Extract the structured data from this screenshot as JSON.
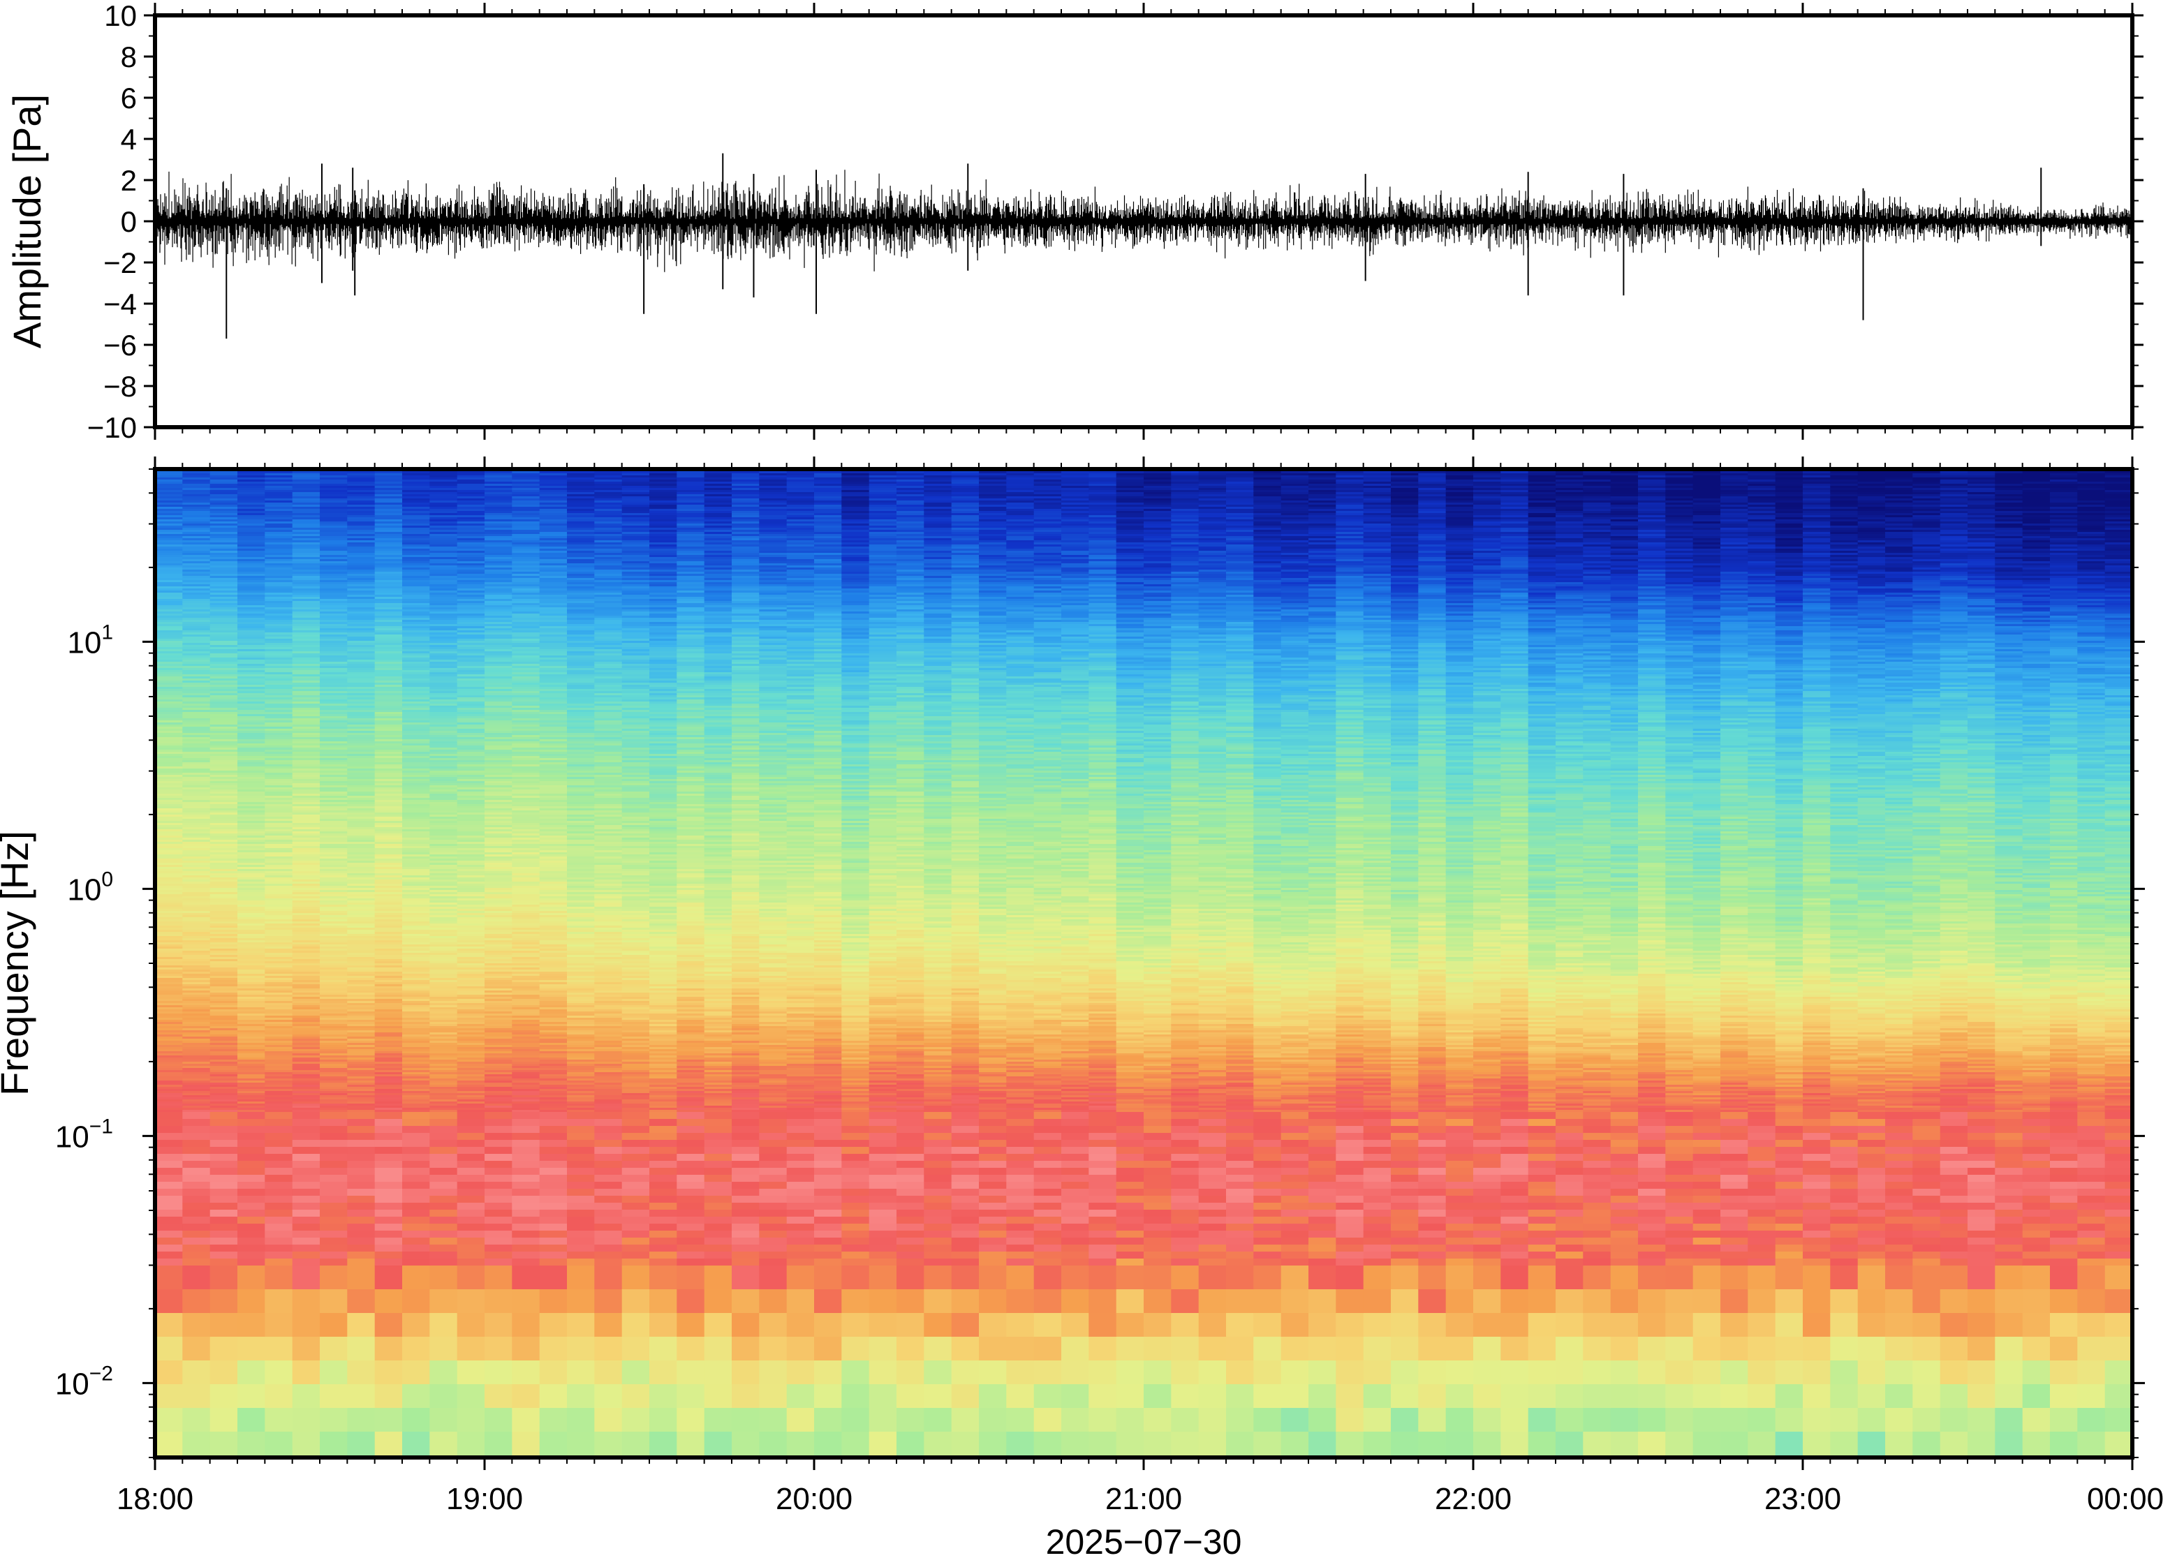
{
  "chart_data": [
    {
      "type": "line",
      "panel": "waveform",
      "ylabel": "Amplitude [Pa]",
      "ylim": [
        -10,
        10
      ],
      "yticks": [
        "10",
        "8",
        "6",
        "4",
        "2",
        "0",
        "−2",
        "−4",
        "−6",
        "−8",
        "−10"
      ],
      "xlim": [
        "18:00",
        "00:00"
      ],
      "x_spikes": [
        {
          "time": "18:13",
          "min": -5.7,
          "max": 1.6
        },
        {
          "time": "18:30",
          "min": -3.0,
          "max": 2.8
        },
        {
          "time": "18:36",
          "min": -2.4,
          "max": 2.6
        },
        {
          "time": "18:36",
          "min": -3.6,
          "max": 1.5
        },
        {
          "time": "19:29",
          "min": -4.5,
          "max": 1.8
        },
        {
          "time": "19:43",
          "min": -3.3,
          "max": 3.3
        },
        {
          "time": "19:49",
          "min": -3.7,
          "max": 2.3
        },
        {
          "time": "20:00",
          "min": -4.5,
          "max": 2.5
        },
        {
          "time": "20:28",
          "min": -2.4,
          "max": 2.8
        },
        {
          "time": "21:40",
          "min": -2.9,
          "max": 2.3
        },
        {
          "time": "22:10",
          "min": -3.6,
          "max": 2.4
        },
        {
          "time": "22:27",
          "min": -3.6,
          "max": 2.3
        },
        {
          "time": "23:11",
          "min": -4.8,
          "max": 1.6
        },
        {
          "time": "23:43",
          "min": -1.2,
          "max": 2.6
        }
      ],
      "amplitude_envelope": [
        {
          "time": "18:00",
          "max": 1.6,
          "min": -1.6
        },
        {
          "time": "19:00",
          "max": 1.3,
          "min": -1.3
        },
        {
          "time": "20:00",
          "max": 1.6,
          "min": -1.6
        },
        {
          "time": "21:00",
          "max": 1.0,
          "min": -1.0
        },
        {
          "time": "22:00",
          "max": 1.1,
          "min": -1.1
        },
        {
          "time": "23:00",
          "max": 1.1,
          "min": -1.1
        },
        {
          "time": "23:45",
          "max": 0.5,
          "min": -0.5
        },
        {
          "time": "00:00",
          "max": 0.7,
          "min": -0.7
        }
      ],
      "line_color": "#000000"
    },
    {
      "type": "heatmap",
      "panel": "spectrogram",
      "ylabel": "Frequency [Hz]",
      "yscale": "log",
      "ylim": [
        0.005,
        50
      ],
      "yticks": [
        {
          "base": "10",
          "exp": "1",
          "value": 10
        },
        {
          "base": "10",
          "exp": "0",
          "value": 1
        },
        {
          "base": "10",
          "exp": "−1",
          "value": 0.1
        },
        {
          "base": "10",
          "exp": "−2",
          "value": 0.01
        }
      ],
      "xlim": [
        "18:00",
        "00:00"
      ],
      "xticks": [
        "18:00",
        "19:00",
        "20:00",
        "21:00",
        "22:00",
        "23:00",
        "00:00"
      ],
      "xlabel": "2025−07−30",
      "colormap": [
        "#0a0f7a",
        "#1033c8",
        "#1f7fe8",
        "#3cb5ee",
        "#66dcd2",
        "#a8ec9a",
        "#e6f08a",
        "#f6d472",
        "#f6a04e",
        "#f15a5a",
        "#f98a8a"
      ],
      "spectral_profile": [
        {
          "freq": 40,
          "level_start": 0.14,
          "level_end": 0.0
        },
        {
          "freq": 20,
          "level_start": 0.24,
          "level_end": 0.06
        },
        {
          "freq": 10,
          "level_start": 0.38,
          "level_end": 0.22
        },
        {
          "freq": 5,
          "level_start": 0.47,
          "level_end": 0.33
        },
        {
          "freq": 2,
          "level_start": 0.56,
          "level_end": 0.43
        },
        {
          "freq": 1,
          "level_start": 0.61,
          "level_end": 0.47
        },
        {
          "freq": 0.5,
          "level_start": 0.7,
          "level_end": 0.55
        },
        {
          "freq": 0.3,
          "level_start": 0.78,
          "level_end": 0.68
        },
        {
          "freq": 0.15,
          "level_start": 0.88,
          "level_end": 0.86
        },
        {
          "freq": 0.07,
          "level_start": 0.95,
          "level_end": 0.93
        },
        {
          "freq": 0.035,
          "level_start": 0.9,
          "level_end": 0.88
        },
        {
          "freq": 0.02,
          "level_start": 0.76,
          "level_end": 0.75
        },
        {
          "freq": 0.012,
          "level_start": 0.62,
          "level_end": 0.6
        },
        {
          "freq": 0.007,
          "level_start": 0.54,
          "level_end": 0.52
        }
      ]
    }
  ]
}
